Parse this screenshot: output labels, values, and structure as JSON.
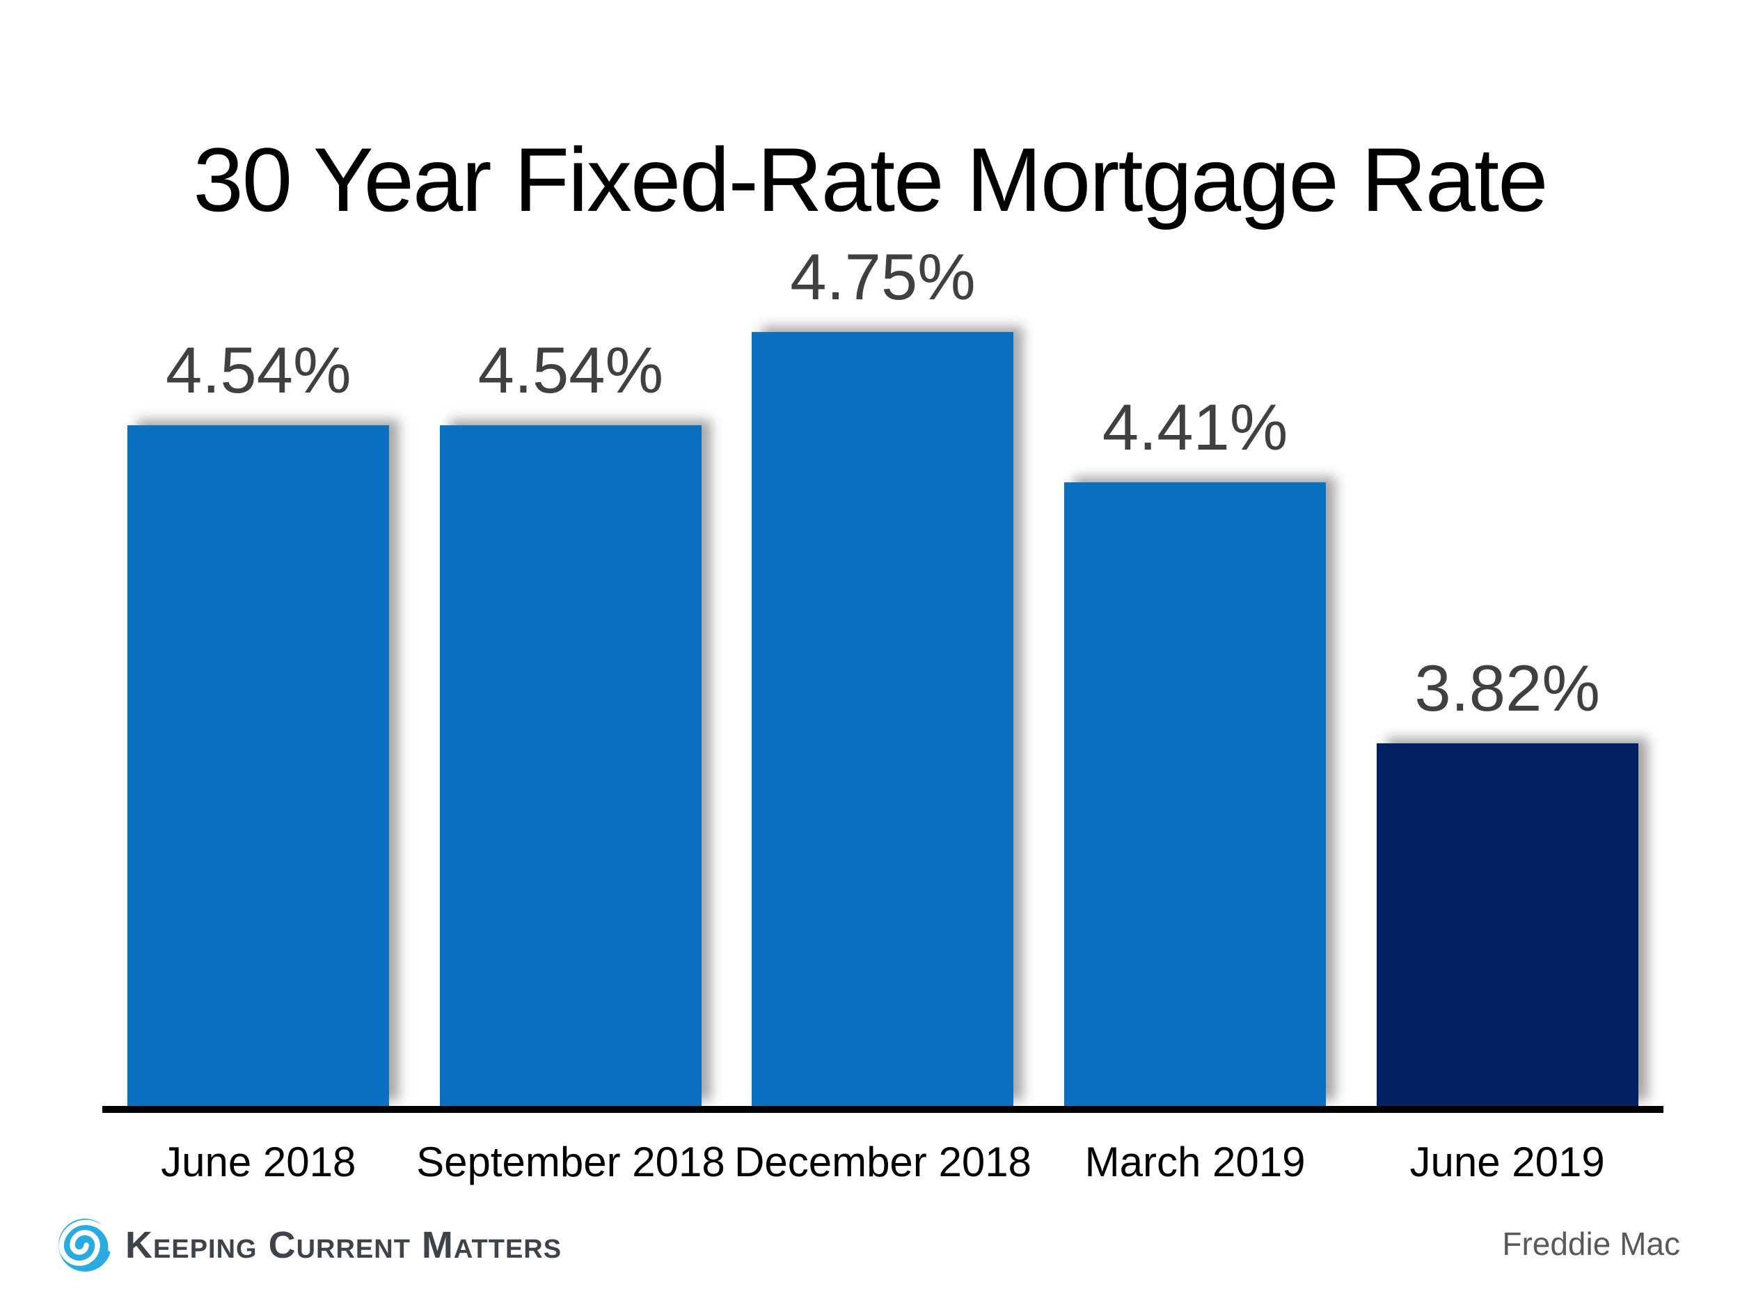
{
  "chart_data": {
    "type": "bar",
    "title": "30 Year Fixed-Rate Mortgage Rate",
    "categories": [
      "June 2018",
      "September 2018",
      "December 2018",
      "March 2019",
      "June 2019"
    ],
    "values": [
      4.54,
      4.54,
      4.75,
      4.41,
      3.82
    ],
    "value_labels": [
      "4.54%",
      "4.54%",
      "4.75%",
      "4.41%",
      "3.82%"
    ],
    "bar_colors": [
      "#0a70c0",
      "#0a70c0",
      "#0a70c0",
      "#0a70c0",
      "#032161"
    ],
    "ylim": [
      3.0,
      4.9
    ],
    "xlabel": "",
    "ylabel": "",
    "grid": false,
    "legend": false,
    "source": "Freddie Mac"
  },
  "footer": {
    "logo_text": "Keeping Current Matters",
    "logo_icon": "swirl-icon",
    "source_label": "Freddie Mac"
  },
  "colors": {
    "bar_blue": "#0a70c0",
    "bar_navy": "#032161",
    "value_label_gray": "#404040",
    "source_gray": "#595959",
    "logo_blue": "#29abe2",
    "logo_text_gray": "#3d4348",
    "axis_black": "#000000",
    "background": "#ffffff"
  }
}
